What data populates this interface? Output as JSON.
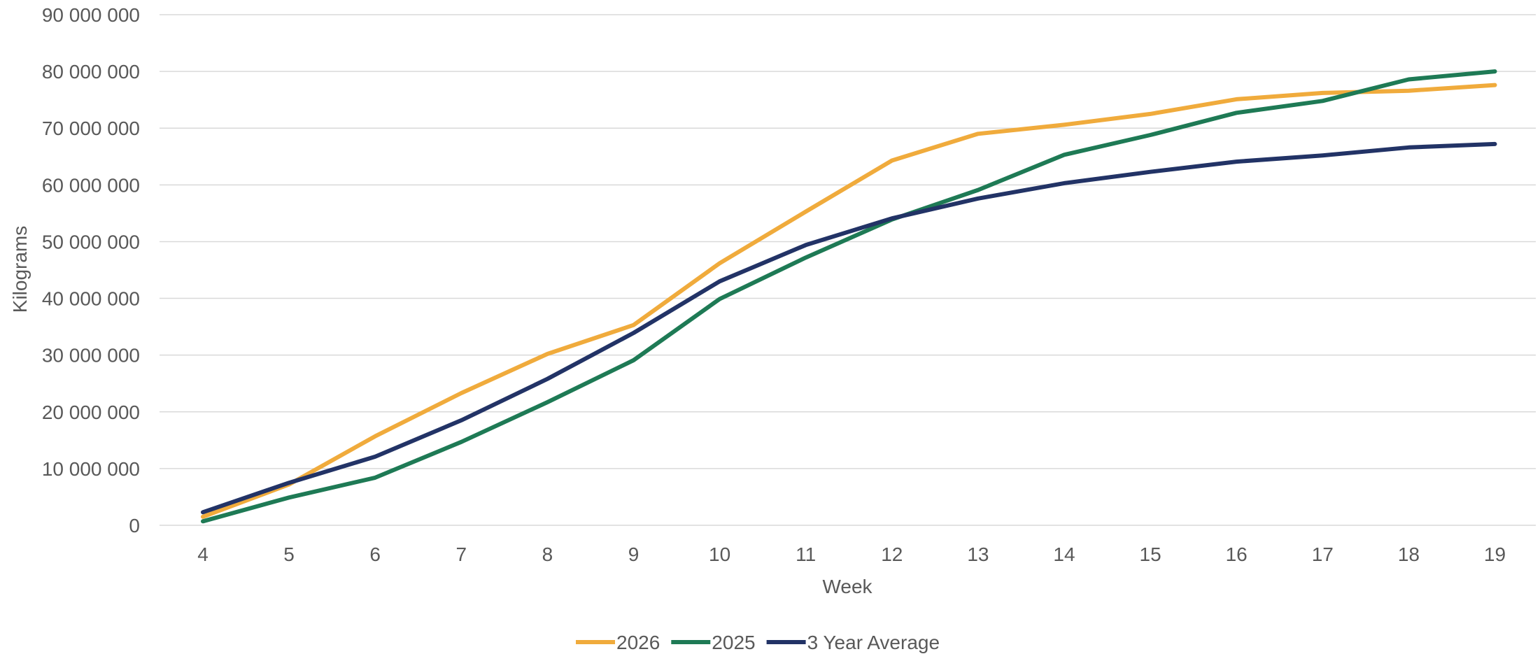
{
  "chart_data": {
    "type": "line",
    "title": "",
    "xlabel": "Week",
    "ylabel": "Kilograms",
    "categories": [
      "4",
      "5",
      "6",
      "7",
      "8",
      "9",
      "10",
      "11",
      "12",
      "13",
      "14",
      "15",
      "16",
      "17",
      "18",
      "19"
    ],
    "y_ticks": [
      "0",
      "10 000 000",
      "20 000 000",
      "30 000 000",
      "40 000 000",
      "50 000 000",
      "60 000 000",
      "70 000 000",
      "80 000 000",
      "90 000 000"
    ],
    "ylim": [
      0,
      90000000
    ],
    "grid": true,
    "legend_position": "bottom",
    "series": [
      {
        "name": "2026",
        "color": "#F0AB3C",
        "values": [
          1500000,
          7200000,
          15700000,
          23300000,
          30200000,
          35300000,
          46200000,
          55300000,
          64300000,
          69000000,
          70600000,
          72500000,
          75100000,
          76200000,
          76600000,
          77600000
        ]
      },
      {
        "name": "2025",
        "color": "#1E7A55",
        "values": [
          700000,
          4900000,
          8400000,
          14700000,
          21700000,
          29100000,
          39900000,
          47200000,
          53900000,
          59100000,
          65300000,
          68800000,
          72700000,
          74800000,
          78600000,
          80000000
        ]
      },
      {
        "name": "3 Year Average",
        "color": "#223366",
        "values": [
          2300000,
          7500000,
          12100000,
          18500000,
          25800000,
          33900000,
          43000000,
          49400000,
          54100000,
          57600000,
          60300000,
          62300000,
          64100000,
          65200000,
          66600000,
          67200000
        ]
      }
    ]
  }
}
